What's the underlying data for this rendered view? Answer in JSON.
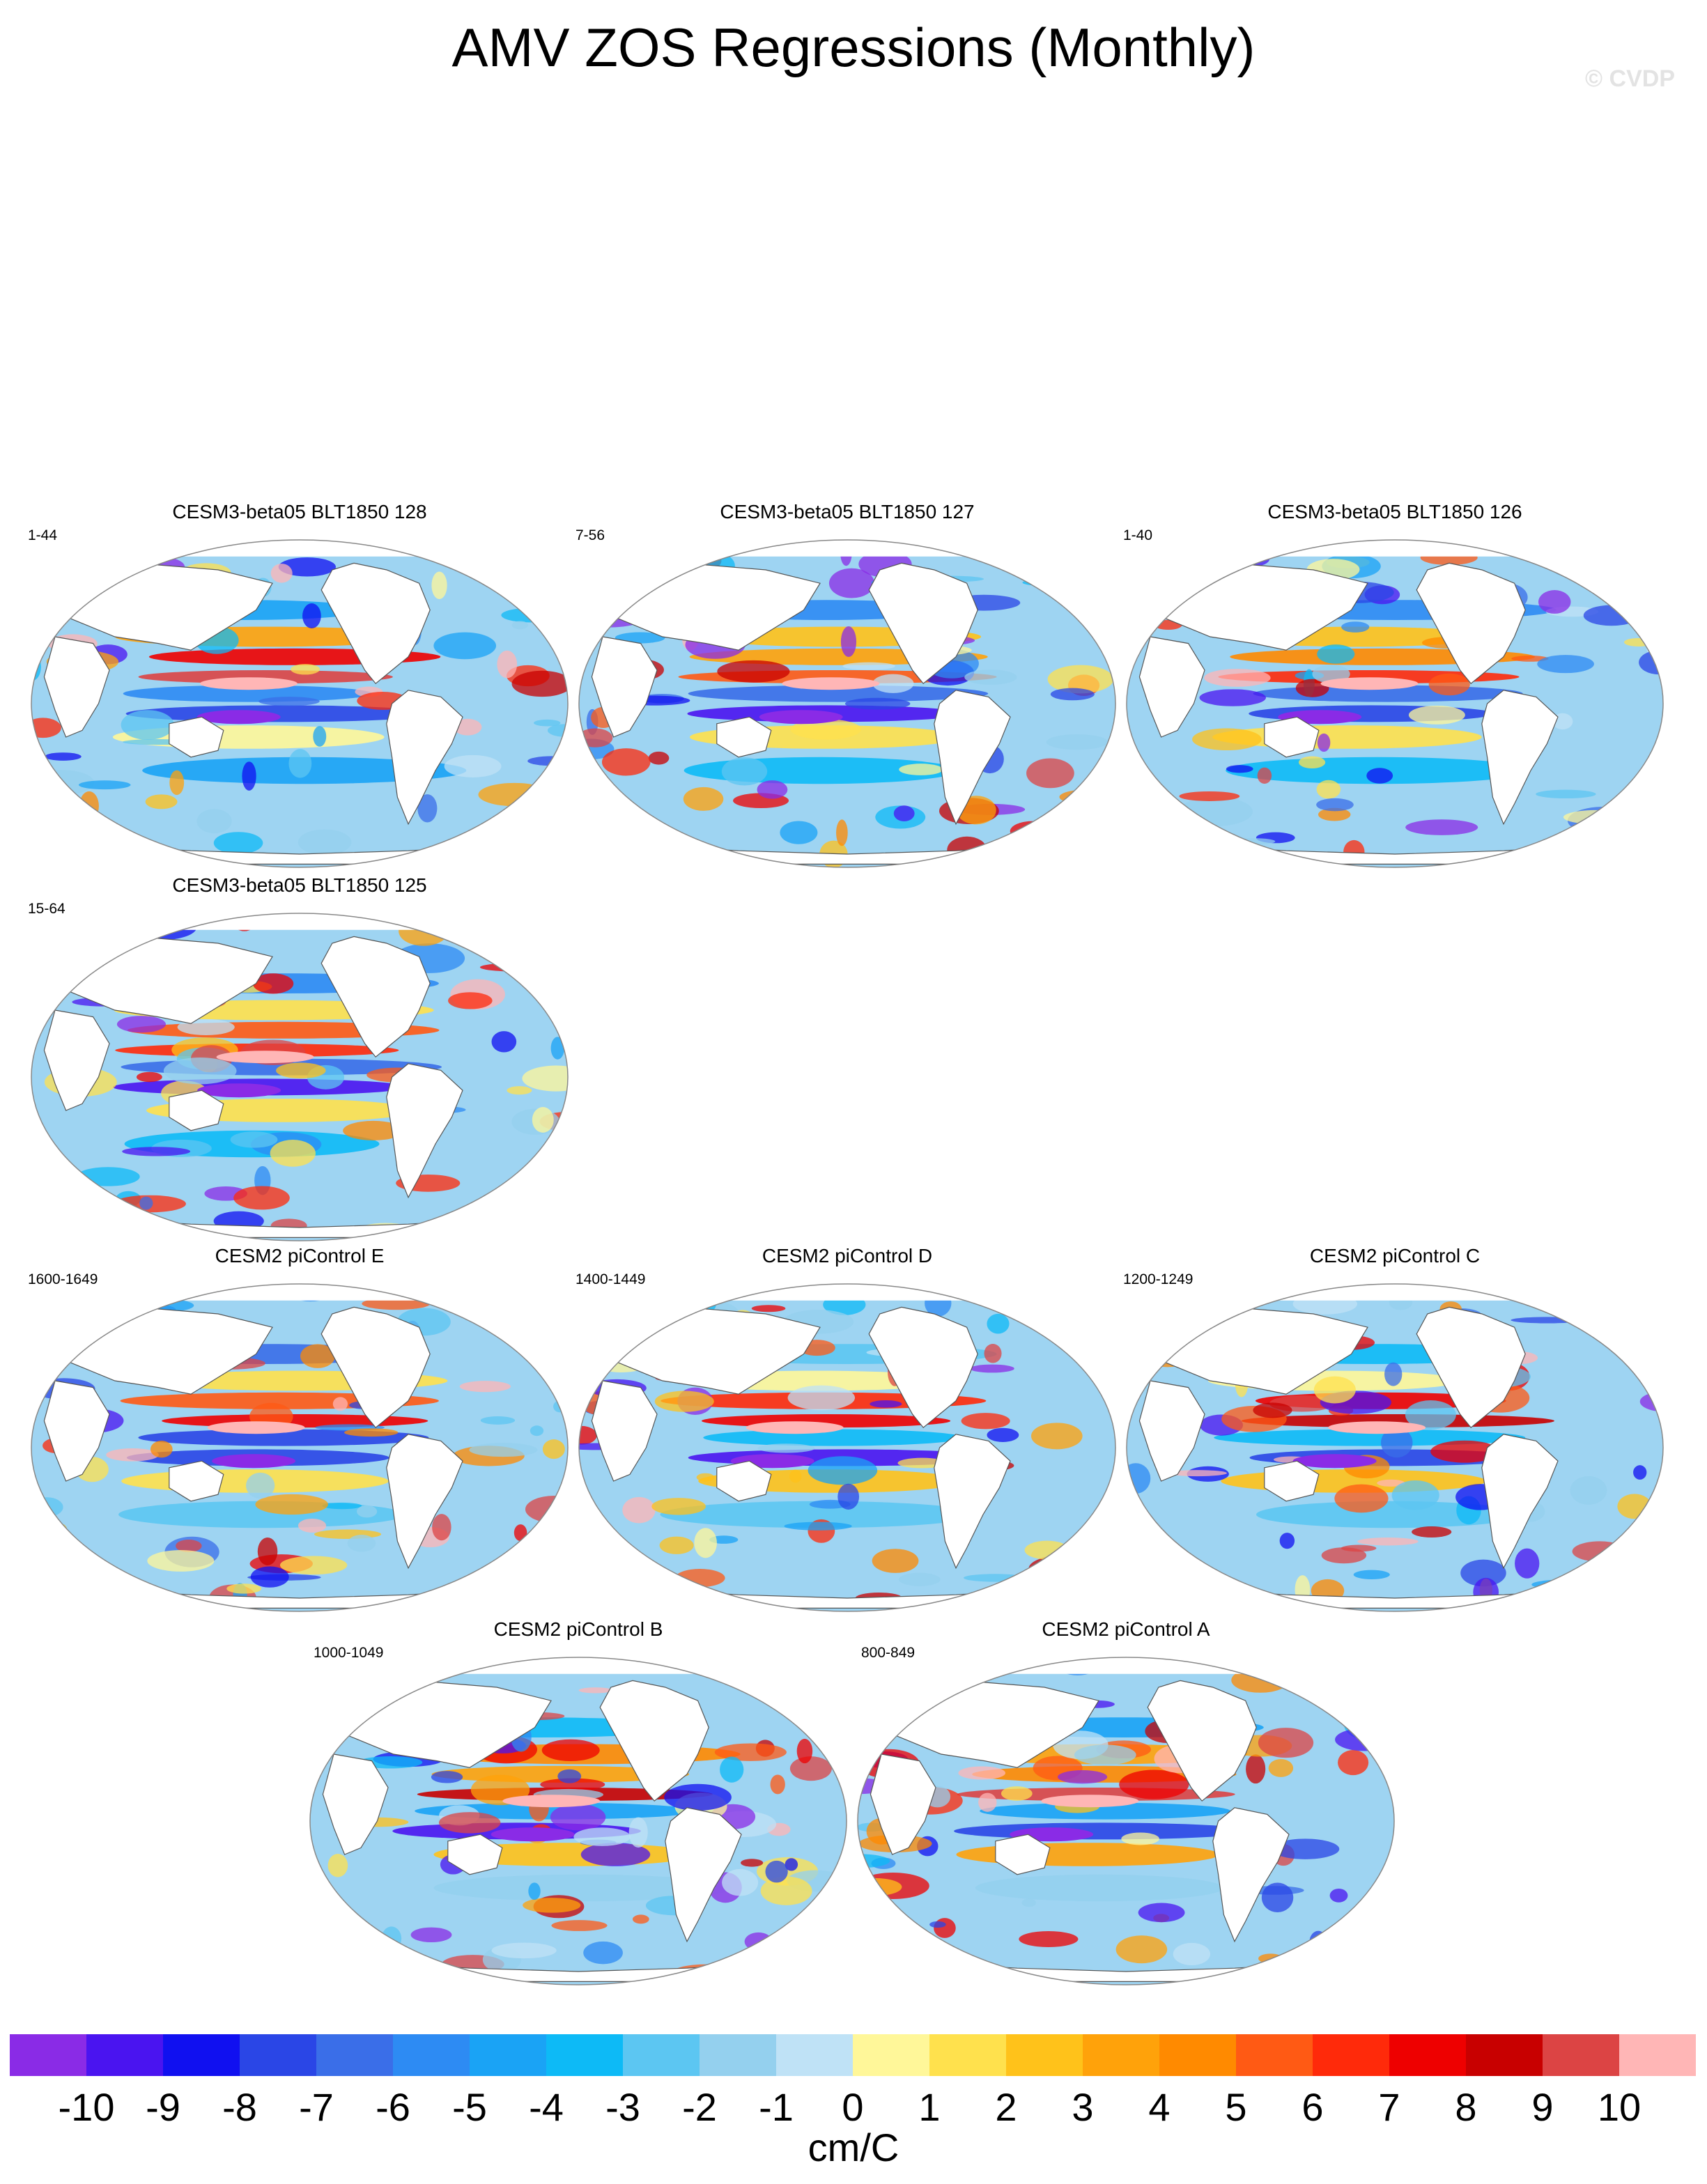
{
  "title": "AMV ZOS Regressions (Monthly)",
  "watermark": "© CVDP",
  "panels": [
    {
      "title": "CESM3-beta05 BLT1850 128",
      "period": "1-44"
    },
    {
      "title": "CESM3-beta05 BLT1850 127",
      "period": "7-56"
    },
    {
      "title": "CESM3-beta05 BLT1850 126",
      "period": "1-40"
    },
    {
      "title": "CESM3-beta05 BLT1850 125",
      "period": "15-64"
    },
    {
      "title": "CESM2 piControl E",
      "period": "1600-1649"
    },
    {
      "title": "CESM2 piControl D",
      "period": "1400-1449"
    },
    {
      "title": "CESM2 piControl C",
      "period": "1200-1249"
    },
    {
      "title": "CESM2 piControl B",
      "period": "1000-1049"
    },
    {
      "title": "CESM2 piControl A",
      "period": "800-849"
    }
  ],
  "colorbar": {
    "units": "cm/C",
    "tick_labels": [
      "-10",
      "-9",
      "-8",
      "-7",
      "-6",
      "-5",
      "-4",
      "-3",
      "-2",
      "-1",
      "0",
      "1",
      "2",
      "3",
      "4",
      "5",
      "6",
      "7",
      "8",
      "9",
      "10"
    ],
    "colors": [
      "#8a2be6",
      "#4a14f0",
      "#1010f0",
      "#2a46e6",
      "#3a6ee8",
      "#2d8bf3",
      "#1aa3f5",
      "#0dbaf6",
      "#5cc6f2",
      "#94d0ee",
      "#bfe2f6",
      "#fff799",
      "#ffe14d",
      "#ffc21a",
      "#ffa20a",
      "#ff8a00",
      "#ff5a14",
      "#ff2a0a",
      "#ee0000",
      "#c80000",
      "#dc4444",
      "#ffb6b6"
    ]
  },
  "map_style": {
    "land": "#ffffff",
    "ocean_base": "#9ed4f2",
    "outline": "#888888",
    "coast": "#555555"
  }
}
